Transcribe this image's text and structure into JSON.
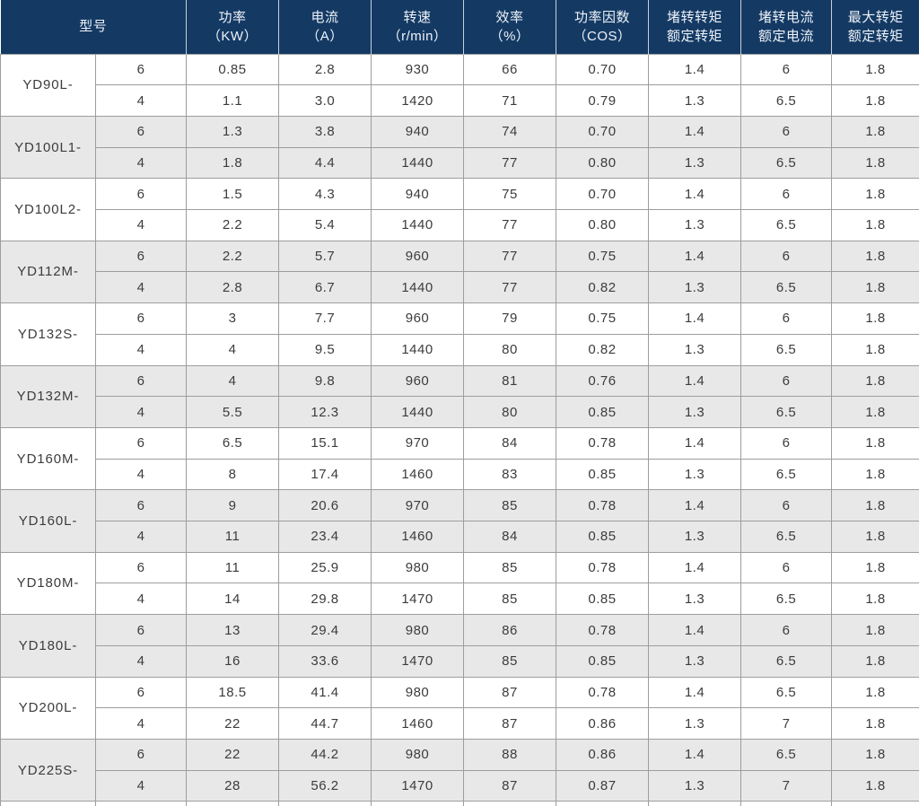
{
  "colors": {
    "header_bg": "#143a64",
    "header_text": "#eef2f8",
    "stripe_bg": "#e8e8e8",
    "row_bg": "#ffffff",
    "border": "#9d9d9d",
    "body_text": "#3c3c3c"
  },
  "table": {
    "headers": [
      {
        "line1": "型号",
        "line2": ""
      },
      {
        "line1": "功率",
        "line2": "（KW）"
      },
      {
        "line1": "电流",
        "line2": "（A）"
      },
      {
        "line1": "转速",
        "line2": "（r/min）"
      },
      {
        "line1": "效率",
        "line2": "（%）"
      },
      {
        "line1": "功率因数",
        "line2": "（COS）"
      },
      {
        "line1": "堵转转矩",
        "line2": "额定转矩"
      },
      {
        "line1": "堵转电流",
        "line2": "额定电流"
      },
      {
        "line1": "最大转矩",
        "line2": "额定转矩"
      }
    ],
    "groups": [
      {
        "model": "YD90L-",
        "rows": [
          [
            "6",
            "0.85",
            "2.8",
            "930",
            "66",
            "0.70",
            "1.4",
            "6",
            "1.8"
          ],
          [
            "4",
            "1.1",
            "3.0",
            "1420",
            "71",
            "0.79",
            "1.3",
            "6.5",
            "1.8"
          ]
        ]
      },
      {
        "model": "YD100L1-",
        "rows": [
          [
            "6",
            "1.3",
            "3.8",
            "940",
            "74",
            "0.70",
            "1.4",
            "6",
            "1.8"
          ],
          [
            "4",
            "1.8",
            "4.4",
            "1440",
            "77",
            "0.80",
            "1.3",
            "6.5",
            "1.8"
          ]
        ]
      },
      {
        "model": "YD100L2-",
        "rows": [
          [
            "6",
            "1.5",
            "4.3",
            "940",
            "75",
            "0.70",
            "1.4",
            "6",
            "1.8"
          ],
          [
            "4",
            "2.2",
            "5.4",
            "1440",
            "77",
            "0.80",
            "1.3",
            "6.5",
            "1.8"
          ]
        ]
      },
      {
        "model": "YD112M-",
        "rows": [
          [
            "6",
            "2.2",
            "5.7",
            "960",
            "77",
            "0.75",
            "1.4",
            "6",
            "1.8"
          ],
          [
            "4",
            "2.8",
            "6.7",
            "1440",
            "77",
            "0.82",
            "1.3",
            "6.5",
            "1.8"
          ]
        ]
      },
      {
        "model": "YD132S-",
        "rows": [
          [
            "6",
            "3",
            "7.7",
            "960",
            "79",
            "0.75",
            "1.4",
            "6",
            "1.8"
          ],
          [
            "4",
            "4",
            "9.5",
            "1440",
            "80",
            "0.82",
            "1.3",
            "6.5",
            "1.8"
          ]
        ]
      },
      {
        "model": "YD132M-",
        "rows": [
          [
            "6",
            "4",
            "9.8",
            "960",
            "81",
            "0.76",
            "1.4",
            "6",
            "1.8"
          ],
          [
            "4",
            "5.5",
            "12.3",
            "1440",
            "80",
            "0.85",
            "1.3",
            "6.5",
            "1.8"
          ]
        ]
      },
      {
        "model": "YD160M-",
        "rows": [
          [
            "6",
            "6.5",
            "15.1",
            "970",
            "84",
            "0.78",
            "1.4",
            "6",
            "1.8"
          ],
          [
            "4",
            "8",
            "17.4",
            "1460",
            "83",
            "0.85",
            "1.3",
            "6.5",
            "1.8"
          ]
        ]
      },
      {
        "model": "YD160L-",
        "rows": [
          [
            "6",
            "9",
            "20.6",
            "970",
            "85",
            "0.78",
            "1.4",
            "6",
            "1.8"
          ],
          [
            "4",
            "11",
            "23.4",
            "1460",
            "84",
            "0.85",
            "1.3",
            "6.5",
            "1.8"
          ]
        ]
      },
      {
        "model": "YD180M-",
        "rows": [
          [
            "6",
            "11",
            "25.9",
            "980",
            "85",
            "0.78",
            "1.4",
            "6",
            "1.8"
          ],
          [
            "4",
            "14",
            "29.8",
            "1470",
            "85",
            "0.85",
            "1.3",
            "6.5",
            "1.8"
          ]
        ]
      },
      {
        "model": "YD180L-",
        "rows": [
          [
            "6",
            "13",
            "29.4",
            "980",
            "86",
            "0.78",
            "1.4",
            "6",
            "1.8"
          ],
          [
            "4",
            "16",
            "33.6",
            "1470",
            "85",
            "0.85",
            "1.3",
            "6.5",
            "1.8"
          ]
        ]
      },
      {
        "model": "YD200L-",
        "rows": [
          [
            "6",
            "18.5",
            "41.4",
            "980",
            "87",
            "0.78",
            "1.4",
            "6.5",
            "1.8"
          ],
          [
            "4",
            "22",
            "44.7",
            "1460",
            "87",
            "0.86",
            "1.3",
            "7",
            "1.8"
          ]
        ]
      },
      {
        "model": "YD225S-",
        "rows": [
          [
            "6",
            "22",
            "44.2",
            "980",
            "88",
            "0.86",
            "1.4",
            "6.5",
            "1.8"
          ],
          [
            "4",
            "28",
            "56.2",
            "1470",
            "87",
            "0.87",
            "1.3",
            "7",
            "1.8"
          ]
        ]
      }
    ]
  }
}
